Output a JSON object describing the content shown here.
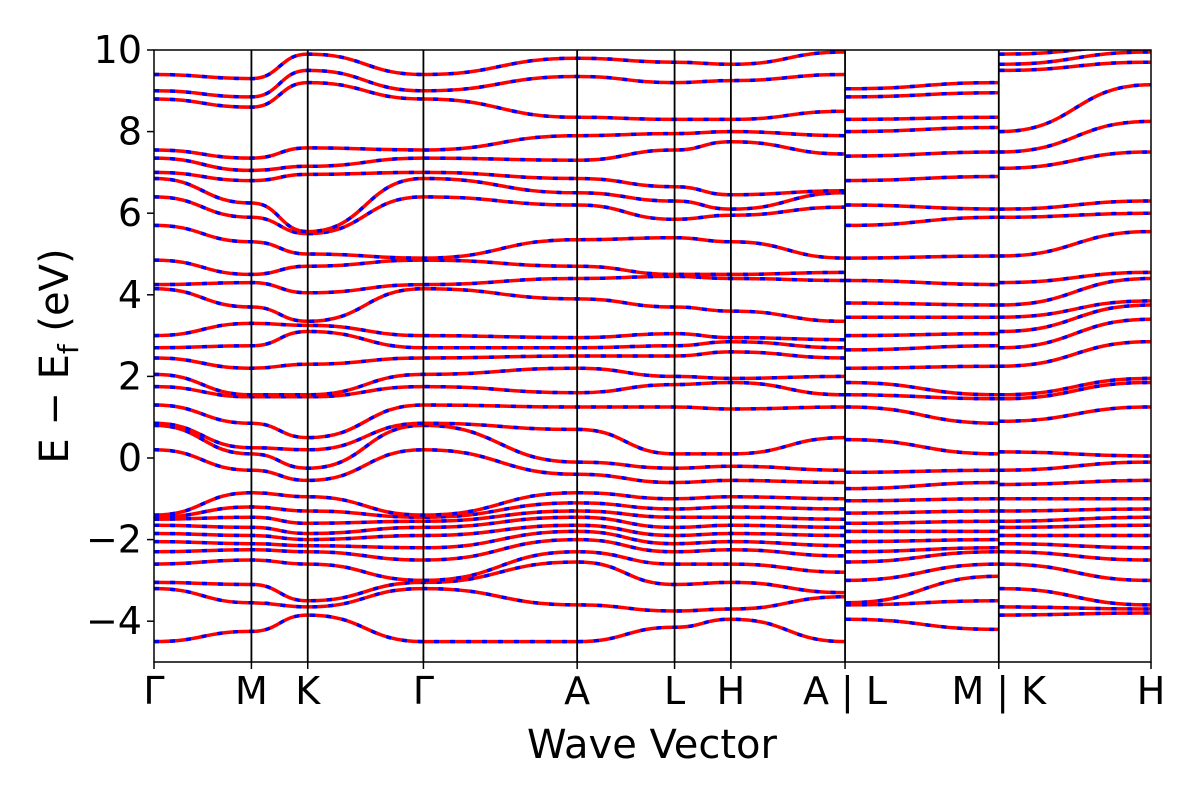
{
  "chart_data": {
    "type": "line",
    "title": "",
    "xlabel": "Wave Vector",
    "ylabel_main": "E − E",
    "ylabel_sub": "f",
    "ylabel_unit": " (eV)",
    "ylim": [
      -5,
      10
    ],
    "yticks": [
      {
        "value": -4,
        "label": "−4"
      },
      {
        "value": -2,
        "label": "−2"
      },
      {
        "value": 0,
        "label": "0"
      },
      {
        "value": 2,
        "label": "2"
      },
      {
        "value": 4,
        "label": "4"
      },
      {
        "value": 6,
        "label": "6"
      },
      {
        "value": 8,
        "label": "8"
      },
      {
        "value": 10,
        "label": "10"
      }
    ],
    "xlim": [
      0,
      6.55
    ],
    "kpoints": [
      {
        "pos": 0.0,
        "label": "Γ"
      },
      {
        "pos": 0.64,
        "label": "M"
      },
      {
        "pos": 1.01,
        "label": "K"
      },
      {
        "pos": 1.77,
        "label": "Γ"
      },
      {
        "pos": 2.78,
        "label": "A"
      },
      {
        "pos": 3.42,
        "label": "L"
      },
      {
        "pos": 3.79,
        "label": "H"
      },
      {
        "pos": 4.54,
        "label": "A | L"
      },
      {
        "pos": 5.55,
        "label": "M | K"
      },
      {
        "pos": 6.55,
        "label": "H"
      }
    ],
    "series_styles": [
      {
        "color": "#ff0000",
        "style": "solid"
      },
      {
        "color": "#0000ff",
        "style": "dashed"
      }
    ],
    "grid": false,
    "bands": [
      [
        -4.5,
        -4.25,
        -3.85,
        -4.5,
        -4.5,
        -4.15,
        -3.95,
        -4.5,
        -3.95,
        -4.2,
        -3.85,
        -3.8
      ],
      [
        -3.2,
        -3.55,
        -3.65,
        -3.2,
        -3.6,
        -3.75,
        -3.7,
        -3.4,
        -3.6,
        -3.5,
        -3.65,
        -3.7
      ],
      [
        -3.05,
        -3.1,
        -3.5,
        -3.05,
        -2.55,
        -3.1,
        -3.05,
        -3.3,
        -3.55,
        -2.9,
        -3.2,
        -3.6
      ],
      [
        -2.6,
        -2.5,
        -2.6,
        -3.0,
        -2.3,
        -2.6,
        -2.6,
        -2.8,
        -3.0,
        -2.6,
        -2.6,
        -3.0
      ],
      [
        -2.3,
        -2.25,
        -2.3,
        -2.5,
        -2.0,
        -2.3,
        -2.25,
        -2.4,
        -2.55,
        -2.3,
        -2.3,
        -2.5
      ],
      [
        -2.05,
        -2.1,
        -2.15,
        -2.2,
        -1.8,
        -2.1,
        -2.05,
        -2.15,
        -2.3,
        -2.2,
        -2.1,
        -2.2
      ],
      [
        -1.85,
        -1.9,
        -2.0,
        -1.9,
        -1.65,
        -1.9,
        -1.85,
        -1.9,
        -2.05,
        -2.0,
        -1.9,
        -1.9
      ],
      [
        -1.65,
        -1.7,
        -1.85,
        -1.7,
        -1.45,
        -1.7,
        -1.65,
        -1.7,
        -1.8,
        -1.8,
        -1.7,
        -1.65
      ],
      [
        -1.5,
        -1.45,
        -1.6,
        -1.55,
        -1.3,
        -1.45,
        -1.45,
        -1.5,
        -1.6,
        -1.55,
        -1.55,
        -1.45
      ],
      [
        -1.45,
        -1.2,
        -1.3,
        -1.45,
        -1.1,
        -1.25,
        -1.2,
        -1.25,
        -1.35,
        -1.3,
        -1.3,
        -1.25
      ],
      [
        -1.4,
        -0.85,
        -0.95,
        -1.4,
        -0.85,
        -1.0,
        -0.95,
        -1.0,
        -1.05,
        -1.0,
        -1.0,
        -1.0
      ],
      [
        0.2,
        -0.3,
        -0.55,
        0.2,
        -0.4,
        -0.6,
        -0.55,
        -0.6,
        -0.75,
        -0.6,
        -0.65,
        -0.55
      ],
      [
        0.8,
        0.1,
        -0.25,
        0.8,
        -0.1,
        -0.25,
        -0.2,
        -0.3,
        -0.35,
        -0.3,
        -0.3,
        -0.1
      ],
      [
        0.85,
        0.25,
        0.2,
        0.85,
        0.7,
        0.1,
        0.1,
        0.5,
        0.45,
        0.1,
        0.15,
        0.05
      ],
      [
        1.3,
        0.85,
        0.5,
        1.3,
        1.25,
        1.25,
        1.2,
        1.25,
        1.25,
        0.85,
        0.9,
        1.25
      ],
      [
        1.75,
        1.5,
        1.5,
        1.75,
        1.6,
        1.8,
        1.85,
        1.55,
        1.55,
        1.45,
        1.45,
        1.85
      ],
      [
        2.05,
        1.55,
        1.55,
        2.05,
        2.2,
        2.0,
        1.95,
        2.0,
        1.85,
        1.55,
        1.55,
        1.95
      ],
      [
        2.45,
        2.2,
        2.3,
        2.45,
        2.5,
        2.5,
        2.6,
        2.45,
        2.2,
        2.25,
        2.25,
        2.85
      ],
      [
        2.7,
        2.75,
        3.1,
        2.7,
        2.7,
        2.75,
        2.85,
        2.7,
        2.65,
        2.75,
        2.7,
        3.4
      ],
      [
        3.0,
        3.3,
        3.25,
        3.0,
        2.95,
        3.05,
        2.95,
        2.9,
        3.0,
        3.05,
        3.1,
        3.75
      ],
      [
        4.15,
        3.7,
        3.35,
        4.15,
        3.9,
        3.7,
        3.6,
        3.35,
        3.45,
        3.45,
        3.45,
        3.85
      ],
      [
        4.25,
        4.3,
        4.05,
        4.25,
        4.4,
        4.45,
        4.4,
        4.35,
        3.8,
        3.75,
        3.75,
        4.4
      ],
      [
        4.85,
        4.5,
        4.7,
        4.85,
        4.7,
        4.5,
        4.5,
        4.55,
        4.35,
        4.25,
        4.3,
        4.55
      ],
      [
        5.7,
        5.3,
        5.0,
        4.9,
        5.35,
        5.4,
        5.3,
        4.9,
        4.9,
        4.95,
        4.95,
        5.55
      ],
      [
        6.4,
        5.9,
        5.5,
        6.4,
        6.2,
        5.85,
        5.95,
        6.15,
        5.7,
        5.9,
        5.9,
        6.0
      ],
      [
        6.85,
        6.25,
        5.55,
        6.85,
        6.5,
        6.3,
        6.1,
        6.5,
        6.2,
        6.1,
        6.1,
        6.3
      ],
      [
        7.0,
        6.8,
        6.95,
        7.0,
        6.85,
        6.65,
        6.45,
        6.55,
        6.8,
        6.9,
        7.1,
        7.5
      ],
      [
        7.35,
        7.05,
        7.15,
        7.35,
        7.3,
        7.55,
        7.75,
        7.45,
        7.4,
        7.5,
        7.5,
        8.25
      ],
      [
        7.55,
        7.35,
        7.6,
        7.55,
        7.9,
        7.95,
        8.0,
        7.9,
        8.0,
        8.1,
        8.0,
        9.15
      ],
      [
        8.8,
        8.6,
        9.2,
        8.8,
        8.35,
        8.3,
        8.3,
        8.5,
        8.3,
        8.35,
        9.5,
        9.7
      ],
      [
        9.0,
        8.85,
        9.5,
        9.0,
        9.35,
        9.2,
        9.25,
        9.4,
        8.85,
        8.95,
        9.65,
        9.95
      ],
      [
        9.4,
        9.3,
        9.9,
        9.4,
        9.8,
        9.7,
        9.65,
        9.95,
        9.05,
        9.2,
        9.9,
        10.1
      ]
    ]
  }
}
